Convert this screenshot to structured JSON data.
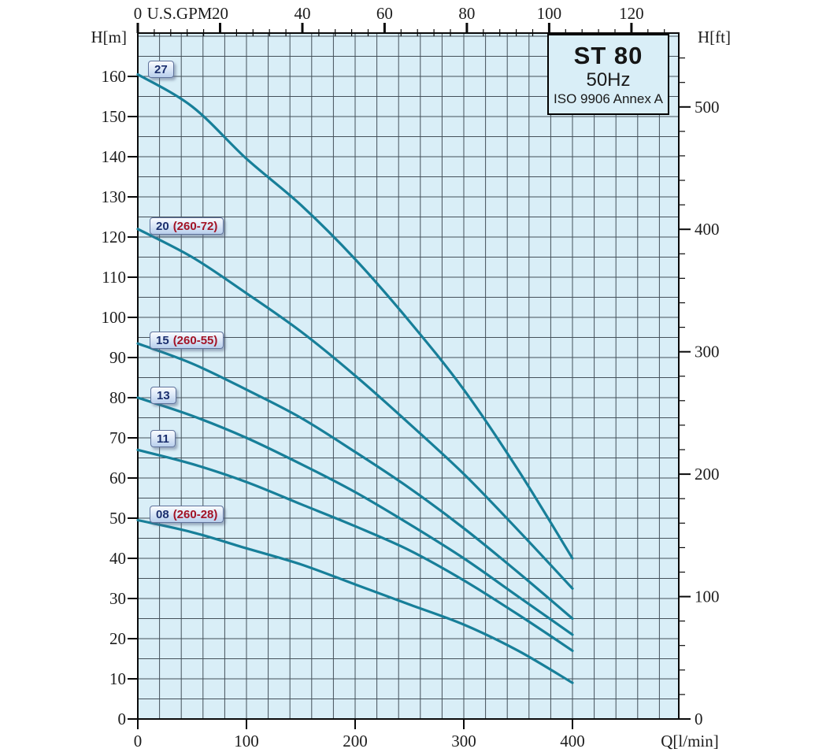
{
  "colors": {
    "plot_bg": "#d9eef7",
    "grid": "#44505a",
    "axis": "#0a0a0a",
    "curve": "#177f99",
    "badge_number": "#1b2f6e",
    "badge_detail": "#a31326"
  },
  "title_box": {
    "model": "ST 80",
    "frequency": "50Hz",
    "standard": "ISO 9906 Annex A"
  },
  "axes": {
    "top": {
      "label": "U.S.GPM",
      "ticks": [
        0,
        20,
        40,
        60,
        80,
        100,
        120
      ]
    },
    "bottom": {
      "label": "Q[l/min]",
      "ticks": [
        0,
        100,
        200,
        300,
        400
      ]
    },
    "left": {
      "label": "H[m]",
      "ticks": [
        0,
        10,
        20,
        30,
        40,
        50,
        60,
        70,
        80,
        90,
        100,
        110,
        120,
        130,
        140,
        150,
        160
      ]
    },
    "right": {
      "label": "H[ft]",
      "ticks": [
        0,
        100,
        200,
        300,
        400,
        500
      ]
    }
  },
  "chart_data": {
    "type": "line",
    "title": "ST 80 50Hz ISO 9906 Annex A",
    "xlabel": "Q[l/min]",
    "xlabel_top": "U.S.GPM",
    "ylabel": "H[m]",
    "ylabel_right": "H[ft]",
    "xlim_lmin": [
      0,
      498
    ],
    "ylim_m": [
      0,
      170.8
    ],
    "grid": {
      "x_step_lmin": 20,
      "y_step_m": 5,
      "top_minor_step_gpm": 4,
      "right_minor_step_ft": 20,
      "gpm_per_lmin": 0.264172,
      "ft_per_m": 3.28084
    },
    "legend_position": "badges-on-curve-starts",
    "x_lmin": [
      0,
      50,
      100,
      150,
      200,
      250,
      300,
      350,
      400
    ],
    "series": [
      {
        "badge": "27",
        "badge_detail": "",
        "values_m": [
          160.5,
          152.5,
          139.5,
          128,
          114.5,
          99,
          82,
          62,
          40
        ]
      },
      {
        "badge": "20",
        "badge_detail": "(260-72)",
        "values_m": [
          122,
          115,
          106,
          96.5,
          85.5,
          73.5,
          61,
          47,
          32.5
        ]
      },
      {
        "badge": "15",
        "badge_detail": "(260-55)",
        "values_m": [
          93.5,
          88.5,
          82,
          75,
          66.5,
          57.5,
          47.5,
          36.5,
          25
        ]
      },
      {
        "badge": "13",
        "badge_detail": "",
        "values_m": [
          80,
          75.5,
          70,
          63.5,
          56.5,
          48.5,
          40,
          30.5,
          21
        ]
      },
      {
        "badge": "11",
        "badge_detail": "",
        "values_m": [
          67,
          63.5,
          59,
          53.5,
          48,
          42,
          34.5,
          26,
          17
        ]
      },
      {
        "badge": "08",
        "badge_detail": "(260-28)",
        "values_m": [
          49.5,
          46.5,
          42.5,
          38.5,
          33.5,
          28.5,
          23.5,
          17,
          9
        ]
      }
    ]
  }
}
